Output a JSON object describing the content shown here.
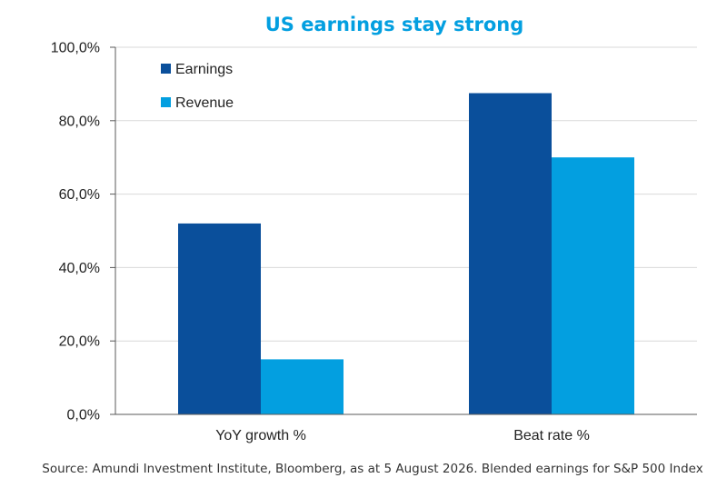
{
  "chart_data": {
    "type": "bar",
    "title": "US earnings stay strong",
    "categories": [
      "YoY growth %",
      "Beat rate %"
    ],
    "series": [
      {
        "name": "Earnings",
        "values": [
          52.0,
          87.5
        ],
        "color": "#0a4f9b"
      },
      {
        "name": "Revenue",
        "values": [
          15.0,
          70.0
        ],
        "color": "#039fe0"
      }
    ],
    "ylim": [
      0,
      100
    ],
    "yticks": [
      "0,0%",
      "20,0%",
      "40,0%",
      "60,0%",
      "80,0%",
      "100,0%"
    ],
    "ytick_values": [
      0,
      20,
      40,
      60,
      80,
      100
    ],
    "grid": true,
    "legend_position": "top-left",
    "title_color": "#039fe0",
    "grid_color": "#d9d9d9",
    "axis_color": "#595959",
    "source": "Source: Amundi Investment Institute, Bloomberg, as at 5 August 2026. Blended earnings for S&P 500 Index"
  }
}
